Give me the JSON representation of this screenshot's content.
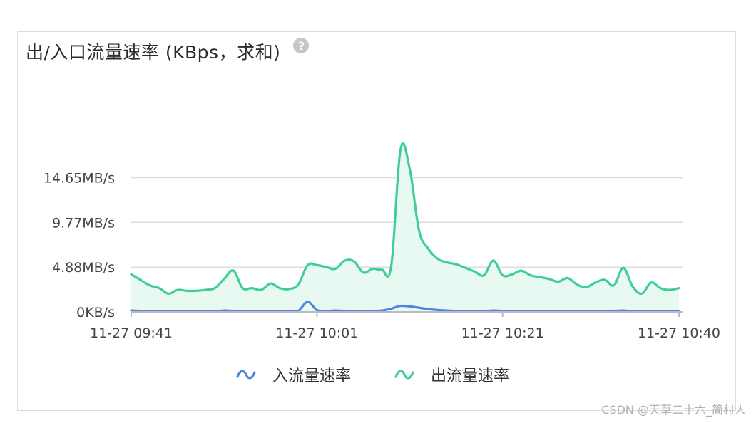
{
  "header": {
    "title": "出/入口流量速率 (KBps，求和)",
    "help_glyph": "?"
  },
  "watermark": "CSDN @天草二十六_简村人",
  "colors": {
    "inbound": "#4f84e6",
    "outbound": "#3fce98",
    "outbound_fill": "#e6f8f0",
    "grid": "#dddddd",
    "axis": "#bbbbbb"
  },
  "chart_data": {
    "type": "area",
    "title": "出/入口流量速率 (KBps，求和)",
    "xlabel": "",
    "ylabel": "",
    "x_ticks": [
      "11-27 09:41",
      "11-27 10:01",
      "11-27 10:21",
      "11-27 10:40"
    ],
    "y_ticks": [
      "0KB/s",
      "4.88MB/s",
      "9.77MB/s",
      "14.65MB/s"
    ],
    "ylim": [
      0,
      18.5
    ],
    "y_unit": "MB/s",
    "grid": true,
    "legend_position": "bottom",
    "x_start": "11-27 09:41",
    "x_end": "11-27 10:40",
    "series": [
      {
        "name": "入流量速率",
        "color": "#4f84e6",
        "values": [
          0.15,
          0.1,
          0.1,
          0.05,
          0.05,
          0.05,
          0.1,
          0.05,
          0.05,
          0.05,
          0.15,
          0.1,
          0.05,
          0.1,
          0.05,
          0.05,
          0.1,
          0.05,
          0.1,
          1.1,
          0.2,
          0.1,
          0.15,
          0.1,
          0.1,
          0.1,
          0.1,
          0.15,
          0.35,
          0.65,
          0.6,
          0.45,
          0.3,
          0.2,
          0.15,
          0.1,
          0.1,
          0.05,
          0.05,
          0.15,
          0.1,
          0.1,
          0.1,
          0.05,
          0.05,
          0.05,
          0.1,
          0.05,
          0.05,
          0.05,
          0.1,
          0.05,
          0.1,
          0.15,
          0.05,
          0.05,
          0.05,
          0.05,
          0.05,
          0.05
        ]
      },
      {
        "name": "出流量速率",
        "color": "#3fce98",
        "values": [
          4.1,
          3.5,
          2.9,
          2.6,
          2.0,
          2.4,
          2.3,
          2.3,
          2.4,
          2.6,
          3.6,
          4.5,
          2.6,
          2.6,
          2.4,
          3.1,
          2.6,
          2.5,
          3.0,
          5.1,
          5.1,
          4.9,
          4.7,
          5.6,
          5.5,
          4.3,
          4.7,
          4.6,
          5.0,
          17.7,
          15.6,
          8.9,
          6.9,
          5.8,
          5.4,
          5.2,
          4.8,
          4.4,
          4.0,
          5.6,
          4.0,
          4.1,
          4.5,
          4.0,
          3.8,
          3.6,
          3.3,
          3.7,
          3.0,
          2.7,
          3.2,
          3.5,
          2.9,
          4.8,
          2.8,
          2.0,
          3.2,
          2.6,
          2.4,
          2.6
        ]
      }
    ]
  }
}
